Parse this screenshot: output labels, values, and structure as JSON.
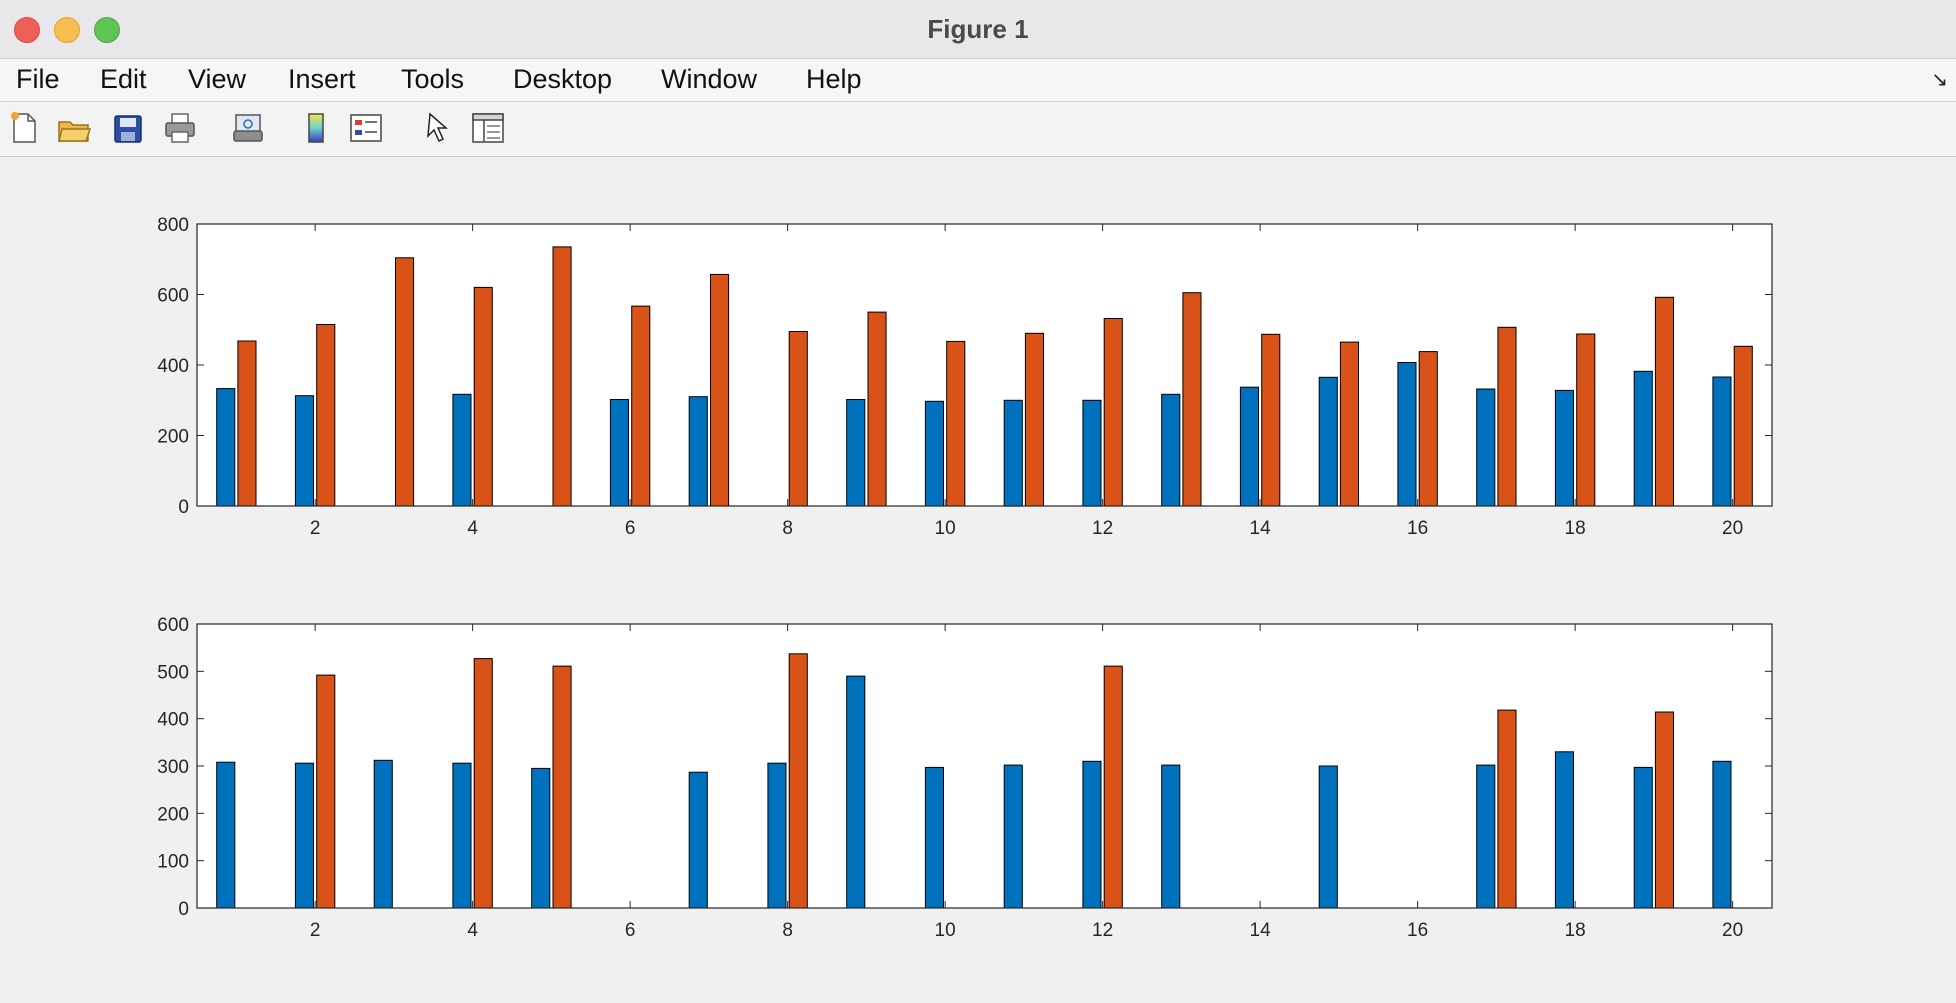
{
  "window": {
    "title": "Figure 1"
  },
  "menu": [
    "File",
    "Edit",
    "View",
    "Insert",
    "Tools",
    "Desktop",
    "Window",
    "Help"
  ],
  "toolbar_icons": [
    "new-figure-icon",
    "open-file-icon",
    "save-icon",
    "print-icon",
    "link-plot-icon",
    "colorbar-icon",
    "legend-icon",
    "edit-plot-icon",
    "property-inspector-icon"
  ],
  "colors": {
    "series1": "#0072bd",
    "series2": "#d95319"
  },
  "chart_data": [
    {
      "type": "bar",
      "title": "",
      "xlabel": "",
      "ylabel": "",
      "x": [
        1,
        2,
        3,
        4,
        5,
        6,
        7,
        8,
        9,
        10,
        11,
        12,
        13,
        14,
        15,
        16,
        17,
        18,
        19,
        20
      ],
      "xticks": [
        2,
        4,
        6,
        8,
        10,
        12,
        14,
        16,
        18,
        20
      ],
      "yticks": [
        0,
        200,
        400,
        600,
        800
      ],
      "xlim": [
        0.5,
        20.5
      ],
      "ylim": [
        0,
        800
      ],
      "grid": false,
      "series": [
        {
          "values": [
            333,
            313,
            0,
            317,
            0,
            302,
            310,
            0,
            302,
            297,
            300,
            300,
            317,
            337,
            365,
            407,
            332,
            328,
            382,
            366
          ]
        },
        {
          "values": [
            468,
            515,
            704,
            620,
            735,
            567,
            657,
            495,
            550,
            467,
            490,
            532,
            605,
            487,
            465,
            438,
            507,
            488,
            592,
            453
          ]
        }
      ]
    },
    {
      "type": "bar",
      "title": "",
      "xlabel": "",
      "ylabel": "",
      "x": [
        1,
        2,
        3,
        4,
        5,
        6,
        7,
        8,
        9,
        10,
        11,
        12,
        13,
        14,
        15,
        16,
        17,
        18,
        19,
        20
      ],
      "xticks": [
        2,
        4,
        6,
        8,
        10,
        12,
        14,
        16,
        18,
        20
      ],
      "yticks": [
        0,
        100,
        200,
        300,
        400,
        500,
        600
      ],
      "xlim": [
        0.5,
        20.5
      ],
      "ylim": [
        0,
        600
      ],
      "grid": false,
      "series": [
        {
          "values": [
            308,
            306,
            312,
            306,
            295,
            0,
            287,
            306,
            490,
            297,
            302,
            310,
            302,
            0,
            300,
            0,
            302,
            330,
            297,
            310
          ]
        },
        {
          "values": [
            0,
            492,
            0,
            527,
            511,
            0,
            0,
            537,
            0,
            0,
            0,
            511,
            0,
            0,
            0,
            0,
            418,
            0,
            414,
            0
          ]
        }
      ]
    }
  ]
}
